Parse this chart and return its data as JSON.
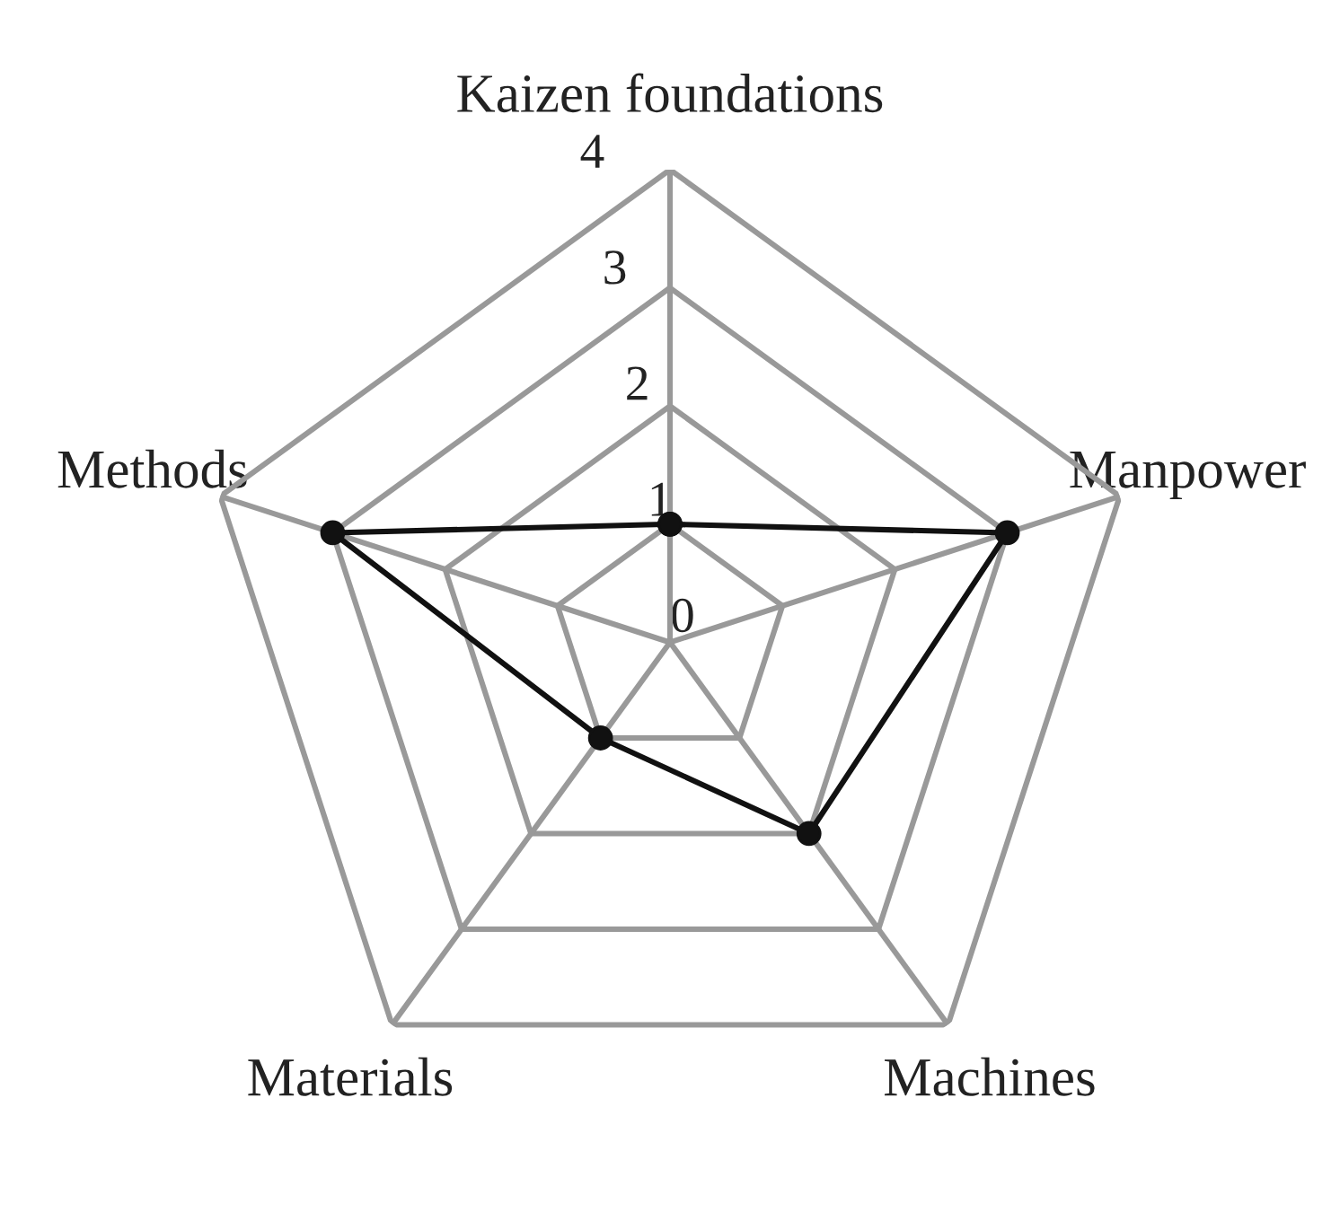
{
  "chart_data": {
    "type": "radar",
    "categories": [
      "Kaizen foundations",
      "Manpower",
      "Machines",
      "Materials",
      "Methods"
    ],
    "series": [
      {
        "color": "#111111",
        "values": [
          1,
          3,
          2,
          1,
          3
        ]
      }
    ],
    "ylim": [
      0,
      4
    ],
    "yticks": [
      0,
      1,
      2,
      3,
      4
    ],
    "grid": true,
    "marker": "circle"
  }
}
